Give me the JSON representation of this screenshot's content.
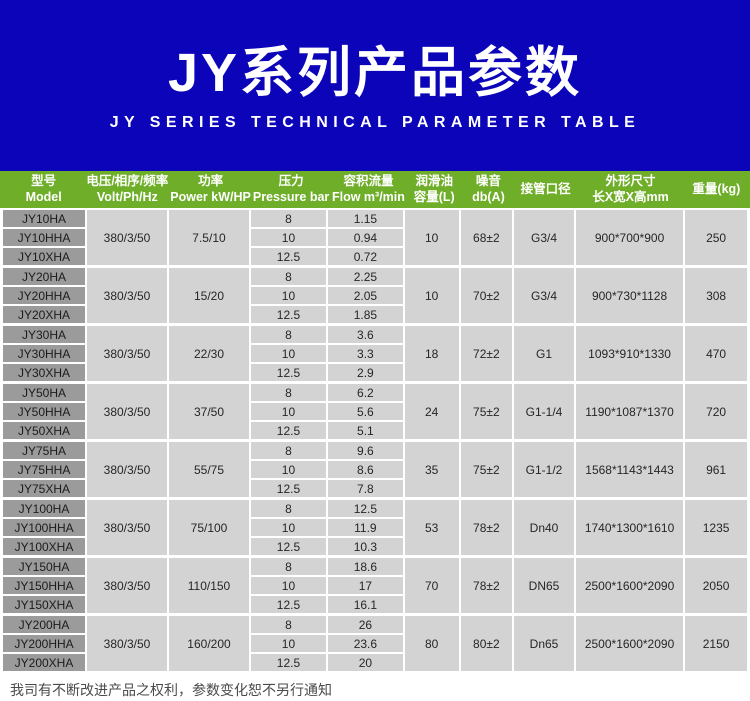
{
  "banner": {
    "title": "JY系列产品参数",
    "subtitle": "JY SERIES TECHNICAL PARAMETER TABLE"
  },
  "colors": {
    "banner_bg": "#0b04b8",
    "header_bg": "#6fae28",
    "model_cell_bg": "#9b9b9b",
    "data_cell_bg": "#d3d3d3",
    "page_bg": "#ffffff"
  },
  "table": {
    "columns": [
      {
        "zh": "型号",
        "en": "Model"
      },
      {
        "zh": "电压/相序/频率",
        "en": "Volt/Ph/Hz"
      },
      {
        "zh": "功率",
        "en": "Power kW/HP"
      },
      {
        "zh": "压力",
        "en": "Pressure bar"
      },
      {
        "zh": "容积流量",
        "en": "Flow m³/min"
      },
      {
        "zh": "润滑油",
        "en": "容量(L)"
      },
      {
        "zh": "噪音",
        "en": "db(A)"
      },
      {
        "zh": "接管口径",
        "en": ""
      },
      {
        "zh": "外形尺寸",
        "en": "长X宽X高mm"
      },
      {
        "zh": "重量(kg)",
        "en": ""
      }
    ],
    "groups": [
      {
        "models": [
          "JY10HA",
          "JY10HHA",
          "JY10XHA"
        ],
        "volt": "380/3/50",
        "power": "7.5/10",
        "pressures": [
          "8",
          "10",
          "12.5"
        ],
        "flows": [
          "1.15",
          "0.94",
          "0.72"
        ],
        "oil": "10",
        "noise": "68±2",
        "pipe": "G3/4",
        "dimensions": "900*700*900",
        "weight": "250"
      },
      {
        "models": [
          "JY20HA",
          "JY20HHA",
          "JY20XHA"
        ],
        "volt": "380/3/50",
        "power": "15/20",
        "pressures": [
          "8",
          "10",
          "12.5"
        ],
        "flows": [
          "2.25",
          "2.05",
          "1.85"
        ],
        "oil": "10",
        "noise": "70±2",
        "pipe": "G3/4",
        "dimensions": "900*730*1128",
        "weight": "308"
      },
      {
        "models": [
          "JY30HA",
          "JY30HHA",
          "JY30XHA"
        ],
        "volt": "380/3/50",
        "power": "22/30",
        "pressures": [
          "8",
          "10",
          "12.5"
        ],
        "flows": [
          "3.6",
          "3.3",
          "2.9"
        ],
        "oil": "18",
        "noise": "72±2",
        "pipe": "G1",
        "dimensions": "1093*910*1330",
        "weight": "470"
      },
      {
        "models": [
          "JY50HA",
          "JY50HHA",
          "JY50XHA"
        ],
        "volt": "380/3/50",
        "power": "37/50",
        "pressures": [
          "8",
          "10",
          "12.5"
        ],
        "flows": [
          "6.2",
          "5.6",
          "5.1"
        ],
        "oil": "24",
        "noise": "75±2",
        "pipe": "G1-1/4",
        "dimensions": "1190*1087*1370",
        "weight": "720"
      },
      {
        "models": [
          "JY75HA",
          "JY75HHA",
          "JY75XHA"
        ],
        "volt": "380/3/50",
        "power": "55/75",
        "pressures": [
          "8",
          "10",
          "12.5"
        ],
        "flows": [
          "9.6",
          "8.6",
          "7.8"
        ],
        "oil": "35",
        "noise": "75±2",
        "pipe": "G1-1/2",
        "dimensions": "1568*1143*1443",
        "weight": "961"
      },
      {
        "models": [
          "JY100HA",
          "JY100HHA",
          "JY100XHA"
        ],
        "volt": "380/3/50",
        "power": "75/100",
        "pressures": [
          "8",
          "10",
          "12.5"
        ],
        "flows": [
          "12.5",
          "11.9",
          "10.3"
        ],
        "oil": "53",
        "noise": "78±2",
        "pipe": "Dn40",
        "dimensions": "1740*1300*1610",
        "weight": "1235"
      },
      {
        "models": [
          "JY150HA",
          "JY150HHA",
          "JY150XHA"
        ],
        "volt": "380/3/50",
        "power": "110/150",
        "pressures": [
          "8",
          "10",
          "12.5"
        ],
        "flows": [
          "18.6",
          "17",
          "16.1"
        ],
        "oil": "70",
        "noise": "78±2",
        "pipe": "DN65",
        "dimensions": "2500*1600*2090",
        "weight": "2050"
      },
      {
        "models": [
          "JY200HA",
          "JY200HHA",
          "JY200XHA"
        ],
        "volt": "380/3/50",
        "power": "160/200",
        "pressures": [
          "8",
          "10",
          "12.5"
        ],
        "flows": [
          "26",
          "23.6",
          "20"
        ],
        "oil": "80",
        "noise": "80±2",
        "pipe": "Dn65",
        "dimensions": "2500*1600*2090",
        "weight": "2150"
      }
    ]
  },
  "footer": {
    "note": "我司有不断改进产品之权利，参数变化恕不另行通知"
  }
}
